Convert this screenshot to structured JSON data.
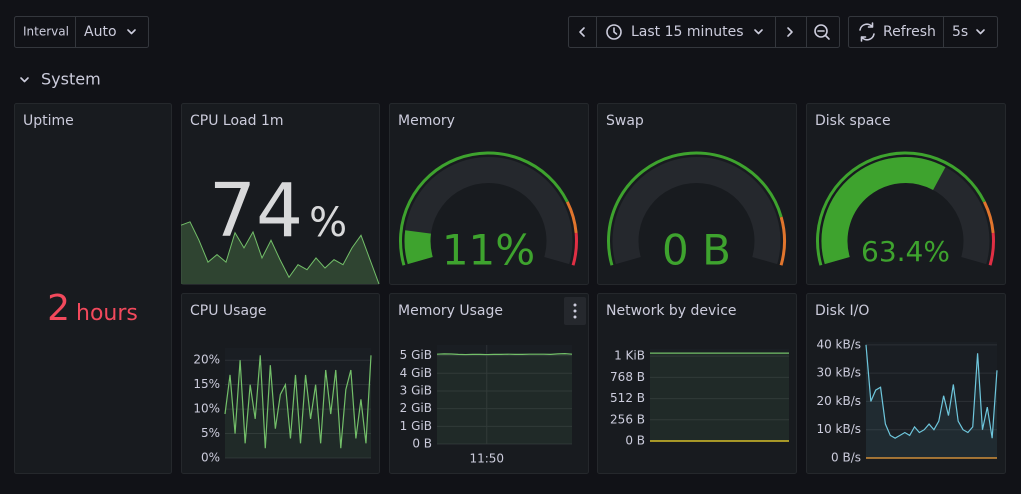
{
  "toolbar": {
    "interval_label": "Interval",
    "interval_value": "Auto",
    "time_range": "Last 15 minutes",
    "refresh_label": "Refresh",
    "refresh_interval": "5s"
  },
  "row_title": "System",
  "chart_data": [
    {
      "type": "stat",
      "title": "Uptime",
      "value": 2,
      "unit": "hours",
      "color": "#f2495c"
    },
    {
      "type": "stat",
      "title": "CPU Load 1m",
      "value": 74,
      "unit": "%",
      "color": "#d8d9da",
      "sparkline": {
        "values": [
          70,
          74,
          52,
          26,
          35,
          26,
          61,
          43,
          62,
          31,
          52,
          29,
          8,
          23,
          17,
          31,
          19,
          29,
          23,
          43,
          58,
          29,
          0
        ],
        "ylim": [
          0,
          100
        ],
        "color": "#73bf69"
      }
    },
    {
      "type": "gauge",
      "title": "Memory",
      "value": 11,
      "value_label": "11%",
      "range": [
        0,
        100
      ],
      "color": "#3ea32e",
      "thresholds": [
        {
          "value": 0,
          "color": "#3ea32e"
        },
        {
          "value": 80,
          "color": "#e0752d"
        },
        {
          "value": 90,
          "color": "#e02f44"
        }
      ]
    },
    {
      "type": "gauge",
      "title": "Swap",
      "value": 0,
      "value_label": "0 B",
      "range": [
        0,
        100
      ],
      "color": "#3ea32e",
      "thresholds": [
        {
          "value": 0,
          "color": "#3ea32e"
        },
        {
          "value": 85,
          "color": "#e0752d"
        }
      ]
    },
    {
      "type": "gauge",
      "title": "Disk space",
      "value": 63.4,
      "value_label": "63.4%",
      "range": [
        0,
        100
      ],
      "color": "#3ea32e",
      "thresholds": [
        {
          "value": 0,
          "color": "#3ea32e"
        },
        {
          "value": 80,
          "color": "#e0752d"
        },
        {
          "value": 90,
          "color": "#e02f44"
        }
      ]
    },
    {
      "type": "line",
      "title": "CPU Usage",
      "ylim": [
        0,
        22.5
      ],
      "yticks": [
        {
          "value": 0,
          "label": "0%"
        },
        {
          "value": 5,
          "label": "5%"
        },
        {
          "value": 10,
          "label": "10%"
        },
        {
          "value": 15,
          "label": "15%"
        },
        {
          "value": 20,
          "label": "20%"
        }
      ],
      "series": [
        {
          "color": "#73bf69",
          "values": [
            9,
            17,
            5,
            20,
            3,
            15,
            8,
            21,
            2,
            19,
            6,
            13,
            15,
            4,
            17,
            3,
            17,
            8,
            15,
            3,
            18,
            9,
            18,
            2,
            14,
            18,
            4,
            12,
            3,
            21
          ]
        }
      ]
    },
    {
      "type": "line",
      "title": "Memory Usage",
      "ylim": [
        0,
        5.6
      ],
      "yticks": [
        {
          "value": 0,
          "label": "0 B"
        },
        {
          "value": 1,
          "label": "1 GiB"
        },
        {
          "value": 2,
          "label": "2 GiB"
        },
        {
          "value": 3,
          "label": "3 GiB"
        },
        {
          "value": 4,
          "label": "4 GiB"
        },
        {
          "value": 5,
          "label": "5 GiB"
        }
      ],
      "categories": [
        null,
        null,
        null,
        null,
        null,
        null,
        null,
        "11:50",
        null,
        null,
        null,
        null,
        null,
        null,
        null,
        null,
        null,
        null,
        null,
        null
      ],
      "series": [
        {
          "color": "#73bf69",
          "values": [
            5.08,
            5.1,
            5.09,
            5.07,
            5.06,
            5.07,
            5.07,
            5.06,
            5.07,
            5.07,
            5.08,
            5.07,
            5.07,
            5.08,
            5.08,
            5.08,
            5.07,
            5.1,
            5.11,
            5.08
          ]
        }
      ]
    },
    {
      "type": "line",
      "title": "Network by device",
      "ylim": [
        0,
        1110
      ],
      "yticks": [
        {
          "value": 0,
          "label": "0 B"
        },
        {
          "value": 256,
          "label": "256 B"
        },
        {
          "value": 512,
          "label": "512 B"
        },
        {
          "value": 768,
          "label": "768 B"
        },
        {
          "value": 1024,
          "label": "1 KiB"
        }
      ],
      "series": [
        {
          "color": "#73bf69",
          "values": [
            1060,
            1060,
            1060,
            1060,
            1060,
            1060,
            1060,
            1060,
            1060,
            1060
          ]
        },
        {
          "color": "#fade2a",
          "values": [
            0,
            0,
            0,
            0,
            0,
            0,
            0,
            0,
            0,
            0
          ]
        }
      ]
    },
    {
      "type": "line",
      "title": "Disk I/O",
      "ylim": [
        0,
        41
      ],
      "yticks": [
        {
          "value": 0,
          "label": "0 B/s"
        },
        {
          "value": 10,
          "label": "10 kB/s"
        },
        {
          "value": 20,
          "label": "20 kB/s"
        },
        {
          "value": 30,
          "label": "30 kB/s"
        },
        {
          "value": 40,
          "label": "40 kB/s"
        }
      ],
      "series": [
        {
          "color": "#6ec6dc",
          "values": [
            40,
            20,
            24,
            25,
            12,
            8,
            7,
            8,
            9,
            8,
            11,
            9,
            10,
            12,
            10,
            13,
            22,
            15,
            26,
            13,
            10,
            9,
            11,
            37,
            10,
            18,
            7,
            31
          ]
        },
        {
          "color": "#f2a23c",
          "values": [
            0,
            0,
            0,
            0,
            0,
            0,
            0,
            0,
            0,
            0,
            0,
            0,
            0,
            0,
            0,
            0,
            0,
            0,
            0,
            0,
            0,
            0,
            0,
            0,
            0,
            0,
            0,
            0
          ]
        }
      ]
    }
  ]
}
